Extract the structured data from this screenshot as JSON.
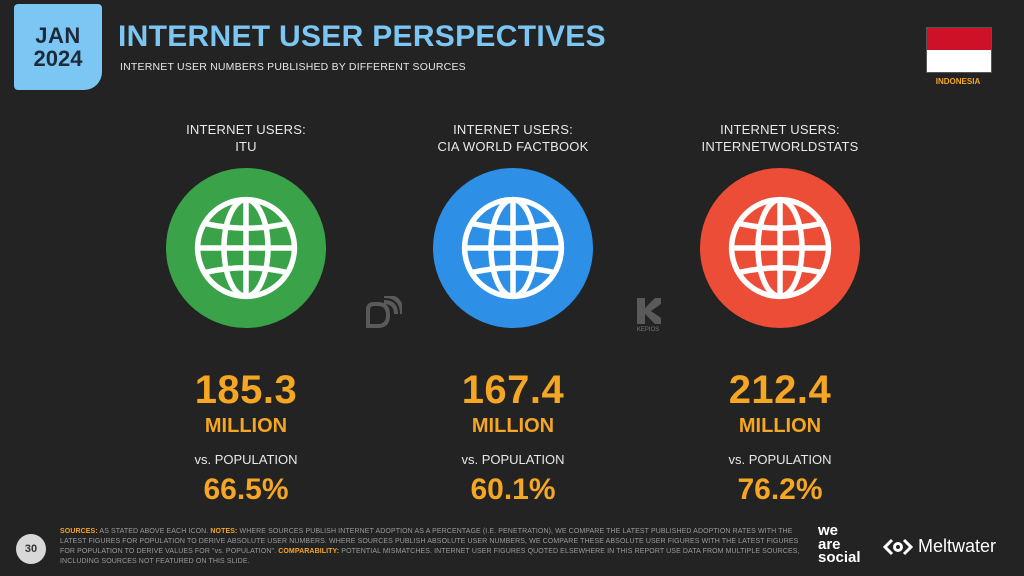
{
  "header": {
    "month": "JAN",
    "year": "2024",
    "title": "INTERNET USER PERSPECTIVES",
    "subtitle": "INTERNET USER NUMBERS PUBLISHED BY DIFFERENT SOURCES",
    "country": "INDONESIA"
  },
  "columns": [
    {
      "heading_line1": "INTERNET USERS:",
      "heading_line2": "ITU",
      "color": "#3aa34a",
      "icon": "globe-icon",
      "value": "185.3",
      "unit": "MILLION",
      "vs_label": "vs. POPULATION",
      "percent": "66.5%"
    },
    {
      "heading_line1": "INTERNET USERS:",
      "heading_line2": "CIA WORLD FACTBOOK",
      "color": "#2e8fe6",
      "icon": "globe-icon",
      "value": "167.4",
      "unit": "MILLION",
      "vs_label": "vs. POPULATION",
      "percent": "60.1%"
    },
    {
      "heading_line1": "INTERNET USERS:",
      "heading_line2": "INTERNETWORLDSTATS",
      "color": "#ec4d37",
      "icon": "globe-icon",
      "value": "212.4",
      "unit": "MILLION",
      "vs_label": "vs. POPULATION",
      "percent": "76.2%"
    }
  ],
  "source_logos": {
    "left": "datareportal-icon",
    "right_caption": "KEPIOS"
  },
  "footer": {
    "page_number": "30",
    "sources_label": "SOURCES:",
    "sources_text": "AS STATED ABOVE EACH ICON.",
    "notes_label": "NOTES:",
    "notes_text": "WHERE SOURCES PUBLISH INTERNET ADOPTION AS A PERCENTAGE (I.E. PENETRATION), WE COMPARE THE LATEST PUBLISHED ADOPTION RATES WITH THE LATEST FIGURES FOR POPULATION TO DERIVE ABSOLUTE USER NUMBERS. WHERE SOURCES PUBLISH ABSOLUTE USER NUMBERS, WE COMPARE THESE ABSOLUTE USER FIGURES WITH THE LATEST FIGURES FOR POPULATION TO DERIVE VALUES FOR \"vs. POPULATION\".",
    "comparability_label": "COMPARABILITY:",
    "comparability_text": "POTENTIAL MISMATCHES. INTERNET USER FIGURES QUOTED ELSEWHERE IN THIS REPORT USE DATA FROM MULTIPLE SOURCES, INCLUDING SOURCES NOT FEATURED ON THIS SLIDE.",
    "brand1_line1": "we",
    "brand1_line2": "are",
    "brand1_line3": "social",
    "brand2": "Meltwater"
  },
  "colors": {
    "background": "#232323",
    "accent_blue": "#7cc6f3",
    "accent_orange": "#f5a623"
  }
}
